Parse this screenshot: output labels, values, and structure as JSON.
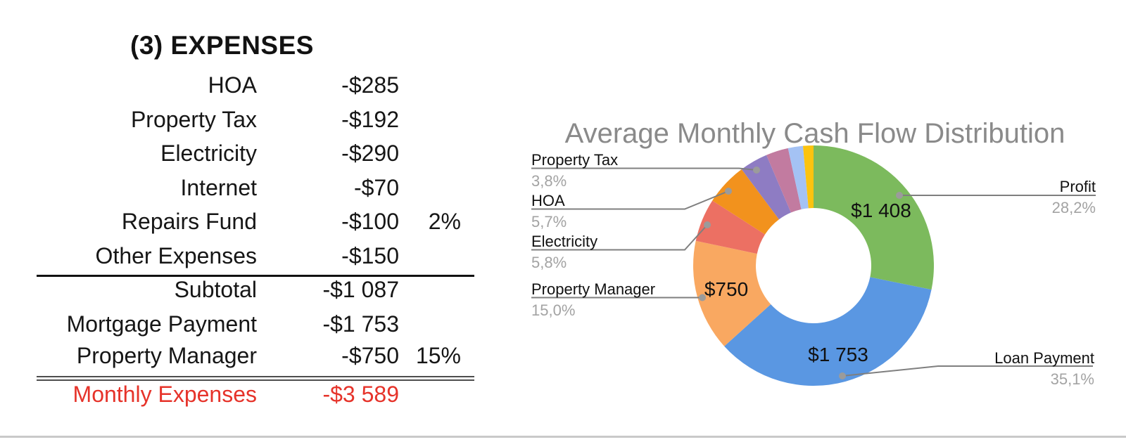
{
  "expenses_table": {
    "title": "(3) EXPENSES",
    "rows": [
      {
        "label": "HOA",
        "value": "-$285",
        "pct": ""
      },
      {
        "label": "Property Tax",
        "value": "-$192",
        "pct": ""
      },
      {
        "label": "Electricity",
        "value": "-$290",
        "pct": ""
      },
      {
        "label": "Internet",
        "value": "-$70",
        "pct": ""
      },
      {
        "label": "Repairs Fund",
        "value": "-$100",
        "pct": "2%"
      },
      {
        "label": "Other Expenses",
        "value": "-$150",
        "pct": ""
      }
    ],
    "summary_rows": [
      {
        "label": "Subtotal",
        "value": "-$1 087",
        "pct": ""
      },
      {
        "label": "Mortgage Payment",
        "value": "-$1 753",
        "pct": ""
      },
      {
        "label": "Property Manager",
        "value": "-$750",
        "pct": "15%"
      }
    ],
    "total_row": {
      "label": "Monthly Expenses",
      "value": "-$3 589"
    },
    "total_color": "#e6332a"
  },
  "chart": {
    "callouts": {
      "property_tax": {
        "name": "Property Tax",
        "pct": "3,8%"
      },
      "hoa": {
        "name": "HOA",
        "pct": "5,7%"
      },
      "electricity": {
        "name": "Electricity",
        "pct": "5,8%"
      },
      "property_manager": {
        "name": "Property Manager",
        "pct": "15,0%"
      },
      "profit": {
        "name": "Profit",
        "pct": "28,2%"
      },
      "loan_payment": {
        "name": "Loan Payment",
        "pct": "35,1%"
      }
    }
  },
  "chart_data": {
    "type": "pie",
    "subtype": "donut",
    "title": "Average Monthly Cash Flow Distribution",
    "direction": "clockwise",
    "start_angle_deg": 0,
    "legend_position": "callout-labels",
    "slices": [
      {
        "name": "Profit",
        "percent": 28.2,
        "percent_label": "28,2%",
        "value_label": "$1 408",
        "color": "#7cba5d"
      },
      {
        "name": "Loan Payment",
        "percent": 35.1,
        "percent_label": "35,1%",
        "value_label": "$1 753",
        "color": "#5a97e2"
      },
      {
        "name": "Property Manager",
        "percent": 15.0,
        "percent_label": "15,0%",
        "value_label": "$750",
        "color": "#f9a861"
      },
      {
        "name": "Electricity",
        "percent": 5.8,
        "percent_label": "5,8%",
        "value_label": "",
        "color": "#ec7063"
      },
      {
        "name": "HOA",
        "percent": 5.7,
        "percent_label": "5,7%",
        "value_label": "",
        "color": "#f2921d"
      },
      {
        "name": "Property Tax",
        "percent": 3.8,
        "percent_label": "3,8%",
        "value_label": "",
        "color": "#8e7cc3"
      },
      {
        "name": "",
        "percent": 3.0,
        "percent_label": "",
        "value_label": "",
        "color": "#c27ba0"
      },
      {
        "name": "",
        "percent": 2.0,
        "percent_label": "",
        "value_label": "",
        "color": "#a4c2f4"
      },
      {
        "name": "",
        "percent": 1.4,
        "percent_label": "",
        "value_label": "",
        "color": "#fcc30f"
      }
    ]
  }
}
